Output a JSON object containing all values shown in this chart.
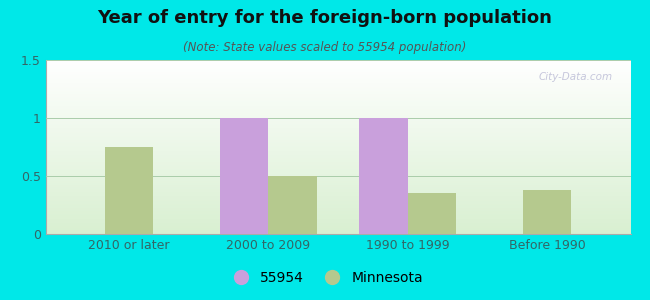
{
  "title": "Year of entry for the foreign-born population",
  "subtitle": "(Note: State values scaled to 55954 population)",
  "categories": [
    "2010 or later",
    "2000 to 2009",
    "1990 to 1999",
    "Before 1990"
  ],
  "series_55954": [
    0,
    1.0,
    1.0,
    0
  ],
  "series_minnesota": [
    0.75,
    0.5,
    0.35,
    0.38
  ],
  "color_55954": "#c9a0dc",
  "color_minnesota": "#b5c98e",
  "ylim": [
    0,
    1.5
  ],
  "yticks": [
    0,
    0.5,
    1.0,
    1.5
  ],
  "bar_width": 0.35,
  "background_outer": "#00e8e8",
  "legend_label_55954": "55954",
  "legend_label_minnesota": "Minnesota",
  "watermark": "City-Data.com",
  "title_fontsize": 13,
  "subtitle_fontsize": 8.5,
  "tick_fontsize": 9
}
